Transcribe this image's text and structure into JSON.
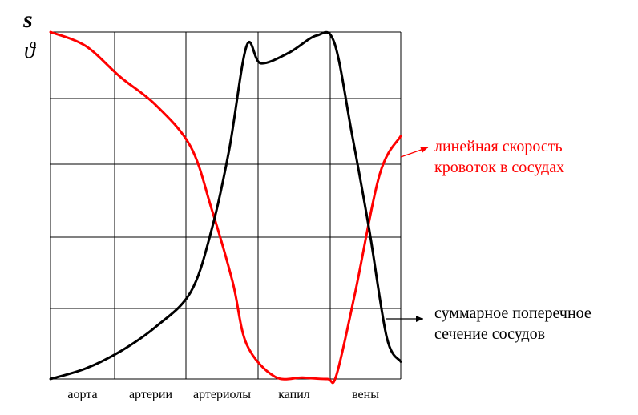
{
  "chart_data": {
    "type": "line",
    "title": "",
    "xlabel": "",
    "ylabel": "",
    "y_symbols": [
      "s",
      "ϑ"
    ],
    "categories": [
      "аорта",
      "артерии",
      "артериолы",
      "капил",
      "вены"
    ],
    "x_range": [
      0,
      5
    ],
    "y_range": [
      0,
      100
    ],
    "grid": true,
    "series": [
      {
        "name": "линейная скорость кровотока в сосудах",
        "color": "#ff0000",
        "points": [
          [
            0,
            100
          ],
          [
            0.5,
            96
          ],
          [
            1,
            87
          ],
          [
            1.5,
            79
          ],
          [
            2,
            67
          ],
          [
            2.3,
            49
          ],
          [
            2.6,
            28
          ],
          [
            2.8,
            10
          ],
          [
            3.2,
            0.7
          ],
          [
            3.6,
            0.4
          ],
          [
            3.95,
            0
          ],
          [
            4.08,
            1
          ],
          [
            4.35,
            25
          ],
          [
            4.7,
            59
          ],
          [
            5,
            70
          ]
        ]
      },
      {
        "name": "суммарное поперечное сечение сосудов",
        "color": "#000000",
        "points": [
          [
            0,
            0
          ],
          [
            0.5,
            3
          ],
          [
            1,
            8
          ],
          [
            1.5,
            15
          ],
          [
            2,
            25
          ],
          [
            2.3,
            43
          ],
          [
            2.55,
            66
          ],
          [
            2.8,
            96
          ],
          [
            3,
            91
          ],
          [
            3.4,
            94
          ],
          [
            3.8,
            99
          ],
          [
            4.05,
            97
          ],
          [
            4.3,
            71
          ],
          [
            4.55,
            43
          ],
          [
            4.8,
            12
          ],
          [
            5,
            5
          ]
        ]
      }
    ],
    "legend": [
      {
        "label_lines": [
          "линейная скорость",
          "кровоток в сосудах"
        ],
        "series": 0
      },
      {
        "label_lines": [
          "суммарное поперечное",
          "сечение сосудов"
        ],
        "series": 1
      }
    ]
  }
}
